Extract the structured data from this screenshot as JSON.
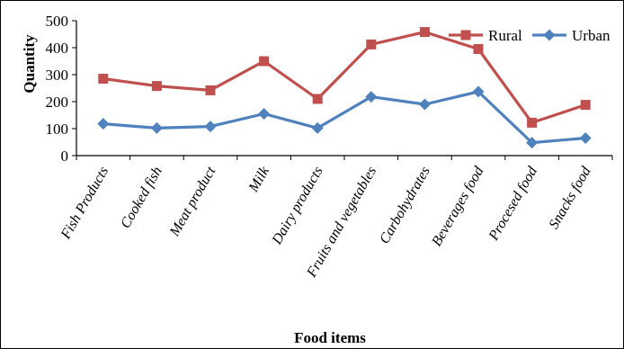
{
  "chart_data": {
    "type": "line",
    "title": "",
    "xlabel": "Food items",
    "ylabel": "Quantity",
    "ylim": [
      0,
      500
    ],
    "yticks": [
      "0",
      "100",
      "200",
      "300",
      "400",
      "500"
    ],
    "categories": [
      "Fish Products",
      "Cooked  fish",
      "Meat product",
      "Milk",
      "Dairy products",
      "Fruits and vegetables",
      "Carbohydrates",
      "Beverages food",
      "Procesed food",
      "Snacks food"
    ],
    "series": [
      {
        "name": "Rural",
        "color": "#c0504d",
        "marker": "square",
        "values": [
          285,
          258,
          242,
          350,
          210,
          412,
          458,
          395,
          122,
          188
        ]
      },
      {
        "name": "Urban",
        "color": "#4f81bd",
        "marker": "diamond",
        "values": [
          118,
          102,
          108,
          155,
          102,
          218,
          190,
          237,
          48,
          65
        ]
      }
    ],
    "grid": false,
    "legend_position": "top-right"
  }
}
